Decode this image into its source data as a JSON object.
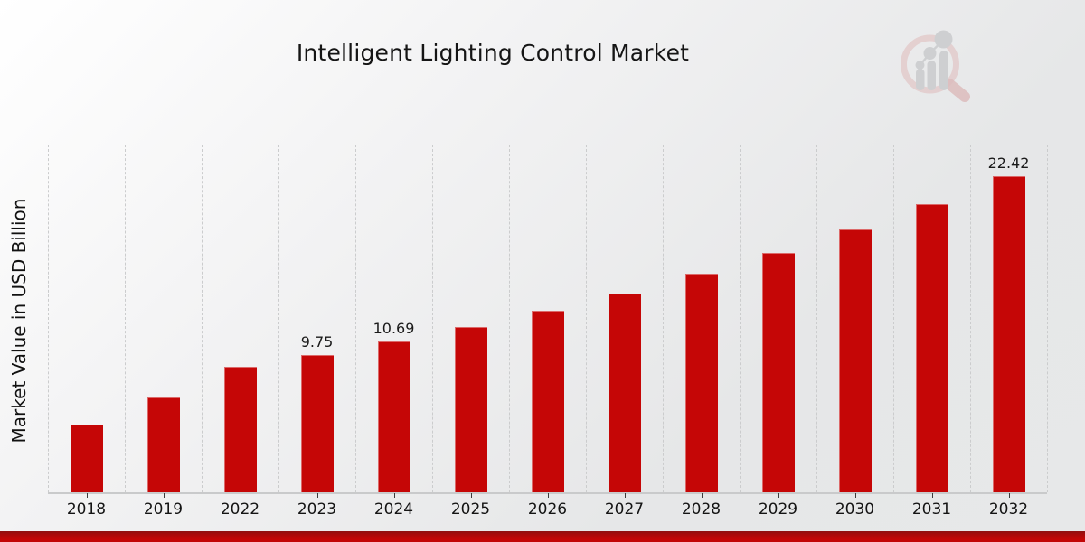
{
  "page": {
    "title": "Intelligent Lighting Control Market",
    "y_axis_label": "Market Value in USD Billion",
    "logo_name": "market-research-future-watermark"
  },
  "colors": {
    "bar": "#c50606",
    "accent_strip": "#c00707",
    "gridline": "#cbcccd",
    "text": "#151515",
    "background_start": "#ffffff",
    "background_end": "#e7e8e9"
  },
  "chart_data": {
    "type": "bar",
    "title": "Intelligent Lighting Control Market",
    "xlabel": "",
    "ylabel": "Market Value in USD Billion",
    "categories": [
      "2018",
      "2019",
      "2022",
      "2023",
      "2024",
      "2025",
      "2026",
      "2027",
      "2028",
      "2029",
      "2030",
      "2031",
      "2032"
    ],
    "values": [
      4.81,
      6.73,
      8.9,
      9.75,
      10.69,
      11.73,
      12.87,
      14.12,
      15.5,
      17.01,
      18.66,
      20.48,
      22.42
    ],
    "data_labels": {
      "2023": "9.75",
      "2024": "10.69",
      "2032": "22.42"
    },
    "ylim": [
      0,
      24.68
    ],
    "grid": "vertical-dashed",
    "legend": "none",
    "bar_color": "#c50606",
    "units": "USD Billion"
  }
}
